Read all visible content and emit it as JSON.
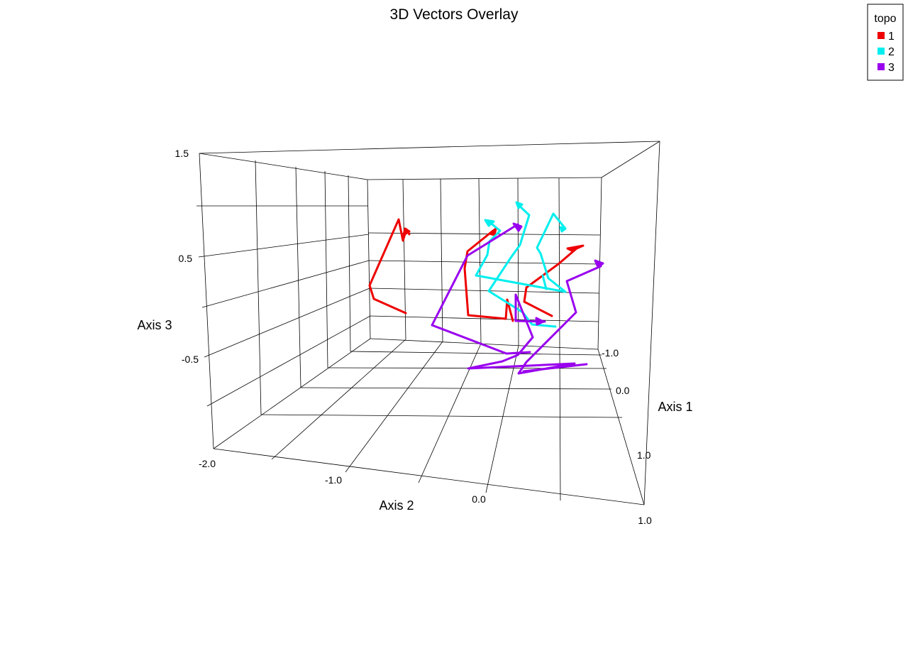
{
  "chart_data": {
    "type": "3d-line",
    "title": "3D Vectors Overlay",
    "axes": {
      "axis1": {
        "label": "Axis 1",
        "ticks": [
          "-1.0",
          "0.0",
          "1.0"
        ]
      },
      "axis2": {
        "label": "Axis 2",
        "ticks": [
          "-2.0",
          "-1.0",
          "0.0",
          "1.0"
        ]
      },
      "axis3": {
        "label": "Axis 3",
        "ticks": [
          "1.5",
          "0.5",
          "-0.5"
        ]
      }
    },
    "legend": {
      "title": "topo",
      "placement": "top-right",
      "entries": [
        {
          "label": "1",
          "color": "#ee0000"
        },
        {
          "label": "2",
          "color": "#00eeee"
        },
        {
          "label": "3",
          "color": "#9900ee"
        }
      ]
    },
    "grid": true,
    "series": [
      {
        "name": "1",
        "color": "#ee0000"
      },
      {
        "name": "2",
        "color": "#00eeee"
      },
      {
        "name": "3",
        "color": "#9900ee"
      }
    ]
  }
}
